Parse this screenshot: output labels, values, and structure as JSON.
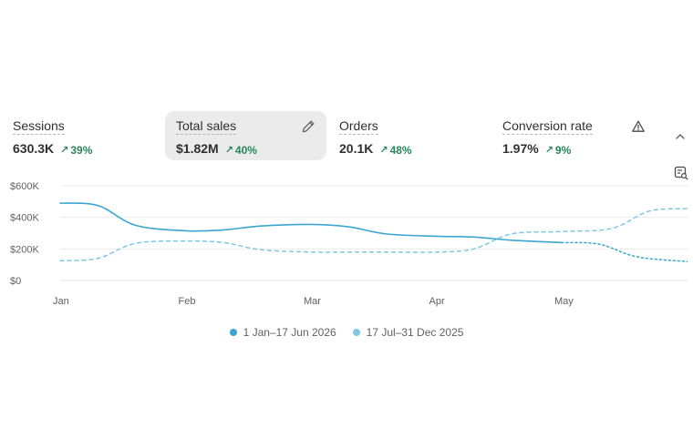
{
  "metrics": [
    {
      "label": "Sessions",
      "value": "630.3K",
      "change": "39%"
    },
    {
      "label": "Total sales",
      "value": "$1.82M",
      "change": "40%",
      "active": true
    },
    {
      "label": "Orders",
      "value": "20.1K",
      "change": "48%"
    },
    {
      "label": "Conversion rate",
      "value": "1.97%",
      "change": "9%"
    }
  ],
  "icons": {
    "arrow": "arrow-up-right-icon",
    "edit": "pencil-icon",
    "alert": "warning-icon",
    "collapse": "chevron-up-icon",
    "chart": "chart-search-icon"
  },
  "colors": {
    "current": "#3aa6d0",
    "previous": "#7ec8e3",
    "positive": "#29845a"
  },
  "chart_data": {
    "type": "line",
    "x_ticks": [
      "Jan",
      "Feb",
      "Mar",
      "Apr",
      "May"
    ],
    "y_ticks": [
      "$600K",
      "$400K",
      "$200K",
      "$0"
    ],
    "ylim": [
      0,
      600000
    ],
    "grid": true,
    "legend_position": "bottom",
    "series": [
      {
        "name": "1 Jan–17 Jun 2026",
        "style": "solid",
        "x": [
          0,
          0.3,
          0.6,
          1.0,
          1.3,
          1.6,
          2.0,
          2.3,
          2.6,
          3.0,
          3.3,
          3.6,
          4.0
        ],
        "values": [
          490000,
          475000,
          350000,
          315000,
          320000,
          345000,
          355000,
          340000,
          295000,
          280000,
          275000,
          255000,
          240000
        ]
      },
      {
        "name": "17 Jul–31 Dec 2025",
        "style": "dashed",
        "x": [
          0,
          0.3,
          0.6,
          1.0,
          1.3,
          1.6,
          2.0,
          2.3,
          2.6,
          3.0,
          3.3,
          3.6,
          4.0,
          4.4,
          4.7,
          5.0
        ],
        "values": [
          125000,
          140000,
          235000,
          250000,
          240000,
          195000,
          180000,
          180000,
          180000,
          180000,
          200000,
          295000,
          310000,
          330000,
          440000,
          455000
        ]
      },
      {
        "name": "1 Jan–17 Jun 2026 (comparison)",
        "style": "dotted",
        "x": [
          4.0,
          4.3,
          4.6,
          5.0
        ],
        "values": [
          240000,
          230000,
          150000,
          120000
        ]
      }
    ]
  },
  "legend": [
    {
      "label": "1 Jan–17 Jun 2026",
      "color": "#3aa6d0"
    },
    {
      "label": "17 Jul–31 Dec 2025",
      "color": "#7ec8e3"
    }
  ]
}
